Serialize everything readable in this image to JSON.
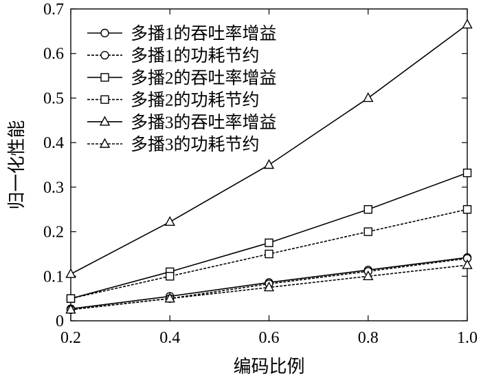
{
  "chart_data": {
    "type": "line",
    "title": "",
    "xlabel": "编码比例",
    "ylabel": "归一化性能",
    "x": [
      0.2,
      0.4,
      0.6,
      0.8,
      1.0
    ],
    "xlim": [
      0.2,
      1.0
    ],
    "ylim": [
      0,
      0.7
    ],
    "xticks": [
      "0.2",
      "0.4",
      "0.6",
      "0.8",
      "1.0"
    ],
    "yticks": [
      "0",
      "0.1",
      "0.2",
      "0.3",
      "0.4",
      "0.5",
      "0.6",
      "0.7"
    ],
    "grid": false,
    "legend_position": "top-left",
    "series": [
      {
        "name": "多播1的吞吐率增益",
        "values": [
          0.027,
          0.055,
          0.086,
          0.114,
          0.142
        ],
        "marker": "circle",
        "style": "solid",
        "color": "#000000"
      },
      {
        "name": "多播1的功耗节约",
        "values": [
          0.025,
          0.05,
          0.083,
          0.111,
          0.14
        ],
        "marker": "circle",
        "style": "dashed",
        "color": "#000000"
      },
      {
        "name": "多播2的吞吐率增益",
        "values": [
          0.05,
          0.11,
          0.175,
          0.25,
          0.332
        ],
        "marker": "square",
        "style": "solid",
        "color": "#000000"
      },
      {
        "name": "多播2的功耗节约",
        "values": [
          0.05,
          0.1,
          0.15,
          0.2,
          0.25
        ],
        "marker": "square",
        "style": "dashed",
        "color": "#000000"
      },
      {
        "name": "多播3的吞吐率增益",
        "values": [
          0.105,
          0.222,
          0.35,
          0.5,
          0.665
        ],
        "marker": "triangle",
        "style": "solid",
        "color": "#000000"
      },
      {
        "name": "多播3的功耗节约",
        "values": [
          0.025,
          0.05,
          0.075,
          0.1,
          0.125
        ],
        "marker": "triangle",
        "style": "dashed",
        "color": "#000000"
      }
    ]
  }
}
